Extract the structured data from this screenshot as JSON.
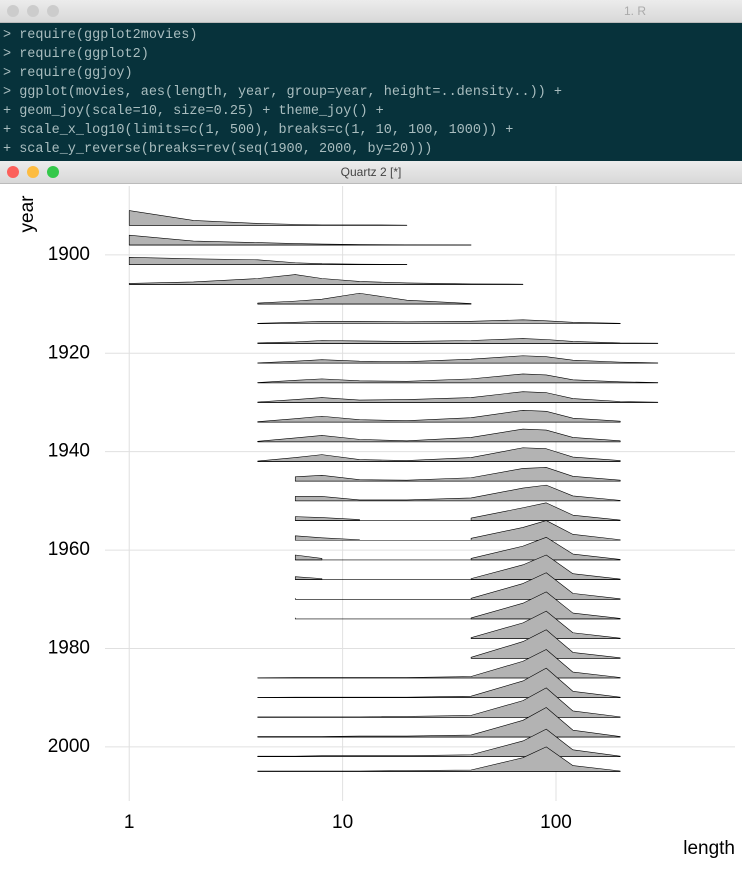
{
  "terminal": {
    "title": "1. R",
    "lines": [
      "> require(ggplot2movies)",
      "> require(ggplot2)",
      "> require(ggjoy)",
      "> ggplot(movies, aes(length, year, group=year, height=..density..)) +",
      "+ geom_joy(scale=10, size=0.25) + theme_joy() +",
      "+ scale_x_log10(limits=c(1, 500), breaks=c(1, 10, 100, 1000)) +",
      "+ scale_y_reverse(breaks=rev(seq(1900, 2000, by=20)))"
    ]
  },
  "plot_window": {
    "title": "Quartz 2 [*]"
  },
  "chart_data": {
    "type": "ridgeline",
    "x_label": "length",
    "y_label": "year",
    "x_scale": "log",
    "y_reverse": true,
    "grid": true,
    "fill_color": "#b3b3b3",
    "line_color": "#000000",
    "xlim": [
      0.77,
      690
    ],
    "xticks": [
      1,
      10,
      100
    ],
    "ylim": [
      1886,
      2011
    ],
    "yticks": [
      1900,
      1920,
      1940,
      1960,
      1980,
      2000
    ],
    "x": [
      1,
      2,
      4,
      6,
      8,
      12,
      20,
      40,
      70,
      90,
      120,
      200,
      300,
      500
    ],
    "series": [
      {
        "year": 1894,
        "values": [
          3,
          1,
          0.4,
          0.2,
          0.1,
          0.1,
          0.05,
          null,
          null,
          null,
          null,
          null,
          null,
          null
        ]
      },
      {
        "year": 1898,
        "values": [
          2,
          0.8,
          0.5,
          0.3,
          0.2,
          0.1,
          0.05,
          0.02,
          null,
          null,
          null,
          null,
          null,
          null
        ]
      },
      {
        "year": 1902,
        "values": [
          1.5,
          1.2,
          1,
          0.4,
          0.2,
          0.1,
          0.05,
          null,
          null,
          null,
          null,
          null,
          null,
          null
        ]
      },
      {
        "year": 1906,
        "values": [
          0.2,
          0.5,
          1.2,
          2,
          1.2,
          0.6,
          0.3,
          0.1,
          0.05,
          null,
          null,
          null,
          null,
          null
        ]
      },
      {
        "year": 1910,
        "values": [
          null,
          null,
          0.2,
          0.6,
          1,
          2.2,
          0.8,
          0.1,
          null,
          null,
          null,
          null,
          null,
          null
        ]
      },
      {
        "year": 1914,
        "values": [
          null,
          null,
          0.1,
          0.3,
          0.5,
          0.5,
          0.4,
          0.5,
          0.8,
          0.6,
          0.3,
          0.1,
          null,
          null
        ]
      },
      {
        "year": 1918,
        "values": [
          null,
          null,
          0.1,
          0.3,
          0.6,
          0.5,
          0.4,
          0.6,
          1,
          0.8,
          0.4,
          0.1,
          0.05,
          null
        ]
      },
      {
        "year": 1922,
        "values": [
          null,
          null,
          0.05,
          0.4,
          0.7,
          0.4,
          0.3,
          0.8,
          1.5,
          1.3,
          0.6,
          0.2,
          0.05,
          null
        ]
      },
      {
        "year": 1926,
        "values": [
          null,
          null,
          0.05,
          0.5,
          0.8,
          0.4,
          0.3,
          0.8,
          1.8,
          1.6,
          0.6,
          0.2,
          0.05,
          null
        ]
      },
      {
        "year": 1930,
        "values": [
          null,
          null,
          0.1,
          0.6,
          1,
          0.5,
          0.6,
          1,
          2.2,
          2,
          0.8,
          0.2,
          0.05,
          null
        ]
      },
      {
        "year": 1934,
        "values": [
          null,
          null,
          0.1,
          0.7,
          1.2,
          0.5,
          0.3,
          0.9,
          2.4,
          2.2,
          0.8,
          0.2,
          null,
          null
        ]
      },
      {
        "year": 1938,
        "values": [
          null,
          null,
          0.1,
          0.8,
          1.3,
          0.5,
          0.2,
          0.9,
          2.6,
          2.4,
          0.9,
          0.2,
          null,
          null
        ]
      },
      {
        "year": 1942,
        "values": [
          null,
          null,
          0.1,
          0.8,
          1.4,
          0.4,
          0.2,
          0.8,
          2.8,
          2.6,
          0.9,
          0.2,
          null,
          null
        ]
      },
      {
        "year": 1946,
        "values": [
          null,
          null,
          null,
          0.9,
          1.2,
          0.3,
          0.2,
          0.7,
          2.6,
          2.8,
          1,
          0.2,
          null,
          null
        ]
      },
      {
        "year": 1950,
        "values": [
          null,
          null,
          null,
          0.9,
          0.9,
          0.2,
          0.2,
          0.6,
          2.6,
          3.2,
          1,
          0.1,
          null,
          null
        ]
      },
      {
        "year": 1954,
        "values": [
          null,
          null,
          null,
          0.8,
          0.6,
          0.2,
          null,
          0.5,
          2.6,
          3.6,
          1.1,
          0.1,
          null,
          null
        ]
      },
      {
        "year": 1958,
        "values": [
          null,
          null,
          null,
          0.9,
          0.5,
          0.1,
          null,
          0.4,
          2.6,
          4,
          1.2,
          0.1,
          null,
          null
        ]
      },
      {
        "year": 1962,
        "values": [
          null,
          null,
          null,
          1,
          0.3,
          null,
          null,
          0.3,
          2.8,
          4.6,
          1.2,
          0.1,
          null,
          null
        ]
      },
      {
        "year": 1966,
        "values": [
          null,
          null,
          null,
          0.6,
          0.2,
          null,
          null,
          0.2,
          3,
          5,
          1.2,
          0.1,
          null,
          null
        ]
      },
      {
        "year": 1970,
        "values": [
          null,
          null,
          null,
          0.2,
          null,
          null,
          null,
          0.2,
          3.2,
          5.4,
          1.2,
          0.1,
          null,
          null
        ]
      },
      {
        "year": 1974,
        "values": [
          null,
          null,
          null,
          0.2,
          null,
          null,
          null,
          0.2,
          3.2,
          5.5,
          1.2,
          0.1,
          null,
          null
        ]
      },
      {
        "year": 1978,
        "values": [
          null,
          null,
          null,
          null,
          null,
          null,
          null,
          0.2,
          3.2,
          5.6,
          1.2,
          0.1,
          null,
          null
        ]
      },
      {
        "year": 1982,
        "values": [
          null,
          null,
          null,
          null,
          null,
          null,
          null,
          0.2,
          3.4,
          5.8,
          1.2,
          0.1,
          null,
          null
        ]
      },
      {
        "year": 1986,
        "values": [
          null,
          null,
          0.05,
          0.1,
          0.1,
          0.1,
          0.1,
          0.3,
          3.4,
          5.8,
          1.2,
          0.1,
          null,
          null
        ]
      },
      {
        "year": 1990,
        "values": [
          null,
          null,
          0.05,
          0.1,
          0.1,
          0.1,
          0.1,
          0.3,
          3.4,
          6,
          1.3,
          0.1,
          null,
          null
        ]
      },
      {
        "year": 1994,
        "values": [
          null,
          null,
          0.1,
          0.1,
          0.1,
          0.1,
          0.2,
          0.4,
          3.4,
          6,
          1.3,
          0.1,
          null,
          null
        ]
      },
      {
        "year": 1998,
        "values": [
          null,
          null,
          0.1,
          0.1,
          0.1,
          0.2,
          0.2,
          0.4,
          3.4,
          6,
          1.4,
          0.1,
          null,
          null
        ]
      },
      {
        "year": 2002,
        "values": [
          null,
          null,
          0.1,
          0.1,
          0.2,
          0.2,
          0.2,
          0.4,
          3.2,
          5.6,
          1.4,
          0.1,
          null,
          null
        ]
      },
      {
        "year": 2005,
        "values": [
          null,
          null,
          0.1,
          0.1,
          0.1,
          0.1,
          0.2,
          0.3,
          2.8,
          5,
          1.2,
          0.1,
          null,
          null
        ]
      }
    ]
  }
}
